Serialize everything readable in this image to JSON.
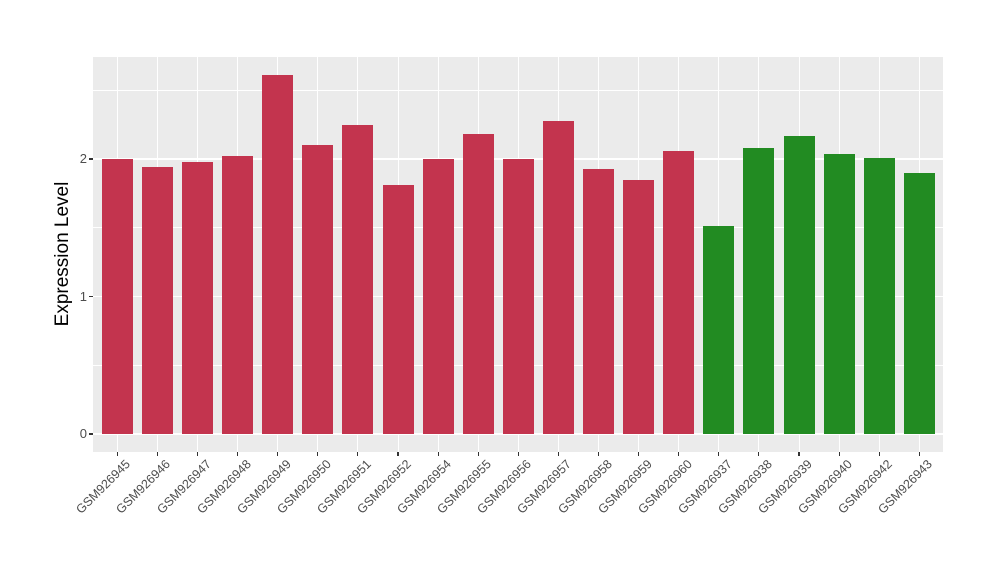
{
  "figure": {
    "y_axis_title": "Expression Level"
  },
  "chart_data": {
    "type": "bar",
    "title": "",
    "xlabel": "",
    "ylabel": "Expression Level",
    "categories": [
      "GSM926945",
      "GSM926946",
      "GSM926947",
      "GSM926948",
      "GSM926949",
      "GSM926950",
      "GSM926951",
      "GSM926952",
      "GSM926954",
      "GSM926955",
      "GSM926956",
      "GSM926957",
      "GSM926958",
      "GSM926959",
      "GSM926960",
      "GSM926937",
      "GSM926938",
      "GSM926939",
      "GSM926940",
      "GSM926942",
      "GSM926943"
    ],
    "values": [
      2.0,
      1.94,
      1.98,
      2.02,
      2.61,
      2.1,
      2.25,
      1.81,
      2.0,
      2.18,
      2.0,
      2.28,
      1.93,
      1.85,
      2.06,
      1.51,
      2.08,
      2.17,
      2.04,
      2.01,
      1.9
    ],
    "bar_groups": [
      "red",
      "red",
      "red",
      "red",
      "red",
      "red",
      "red",
      "red",
      "red",
      "red",
      "red",
      "red",
      "red",
      "red",
      "red",
      "green",
      "green",
      "green",
      "green",
      "green",
      "green"
    ],
    "group_colors": {
      "red": "#C3344E",
      "green": "#228B22"
    },
    "ylim": [
      0,
      2.74
    ],
    "yticks": [
      0,
      1,
      2
    ],
    "ytick_labels": [
      "0",
      "1",
      "2"
    ],
    "yticks_minor": [
      0.5,
      1.5,
      2.5
    ],
    "grid": "major-and-minor, white on grey panel",
    "legend_position": "none",
    "panel_background": "#EBEBEB",
    "gridline_color": "#FFFFFF",
    "tick_color": "#333333",
    "tick_label_color": "#4D4D4D"
  }
}
